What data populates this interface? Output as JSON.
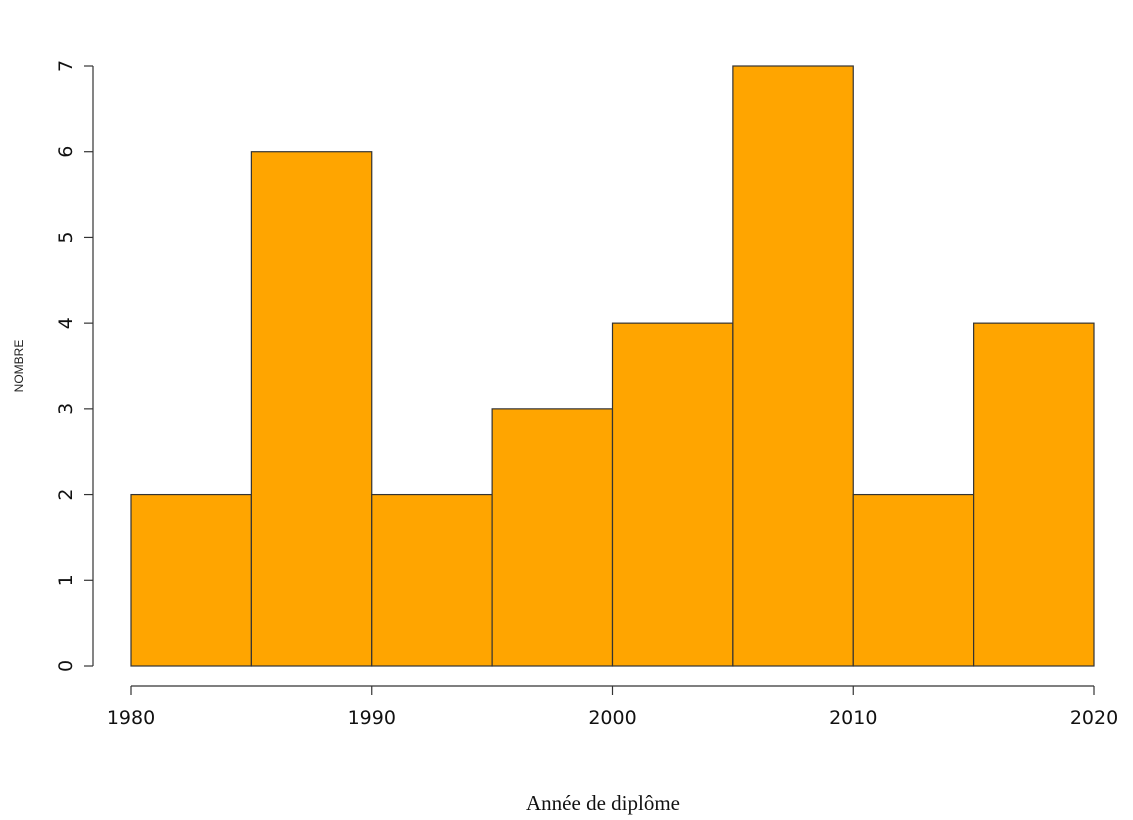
{
  "chart_data": {
    "type": "bar",
    "title": "",
    "xlabel": "Année de diplôme",
    "ylabel": "NOMBRE",
    "bins": [
      {
        "x0": 1980,
        "x1": 1985,
        "value": 2
      },
      {
        "x0": 1985,
        "x1": 1990,
        "value": 6
      },
      {
        "x0": 1990,
        "x1": 1995,
        "value": 2
      },
      {
        "x0": 1995,
        "x1": 2000,
        "value": 3
      },
      {
        "x0": 2000,
        "x1": 2005,
        "value": 4
      },
      {
        "x0": 2005,
        "x1": 2010,
        "value": 7
      },
      {
        "x0": 2010,
        "x1": 2015,
        "value": 2
      },
      {
        "x0": 2015,
        "x1": 2020,
        "value": 4
      }
    ],
    "xlim": [
      1980,
      2020
    ],
    "ylim": [
      0,
      7
    ],
    "xticks": [
      1980,
      1990,
      2000,
      2010,
      2020
    ],
    "yticks": [
      0,
      1,
      2,
      3,
      4,
      5,
      6,
      7
    ],
    "grid": false,
    "bar_color": "#ffa500",
    "bar_edge_color": "#333333"
  }
}
